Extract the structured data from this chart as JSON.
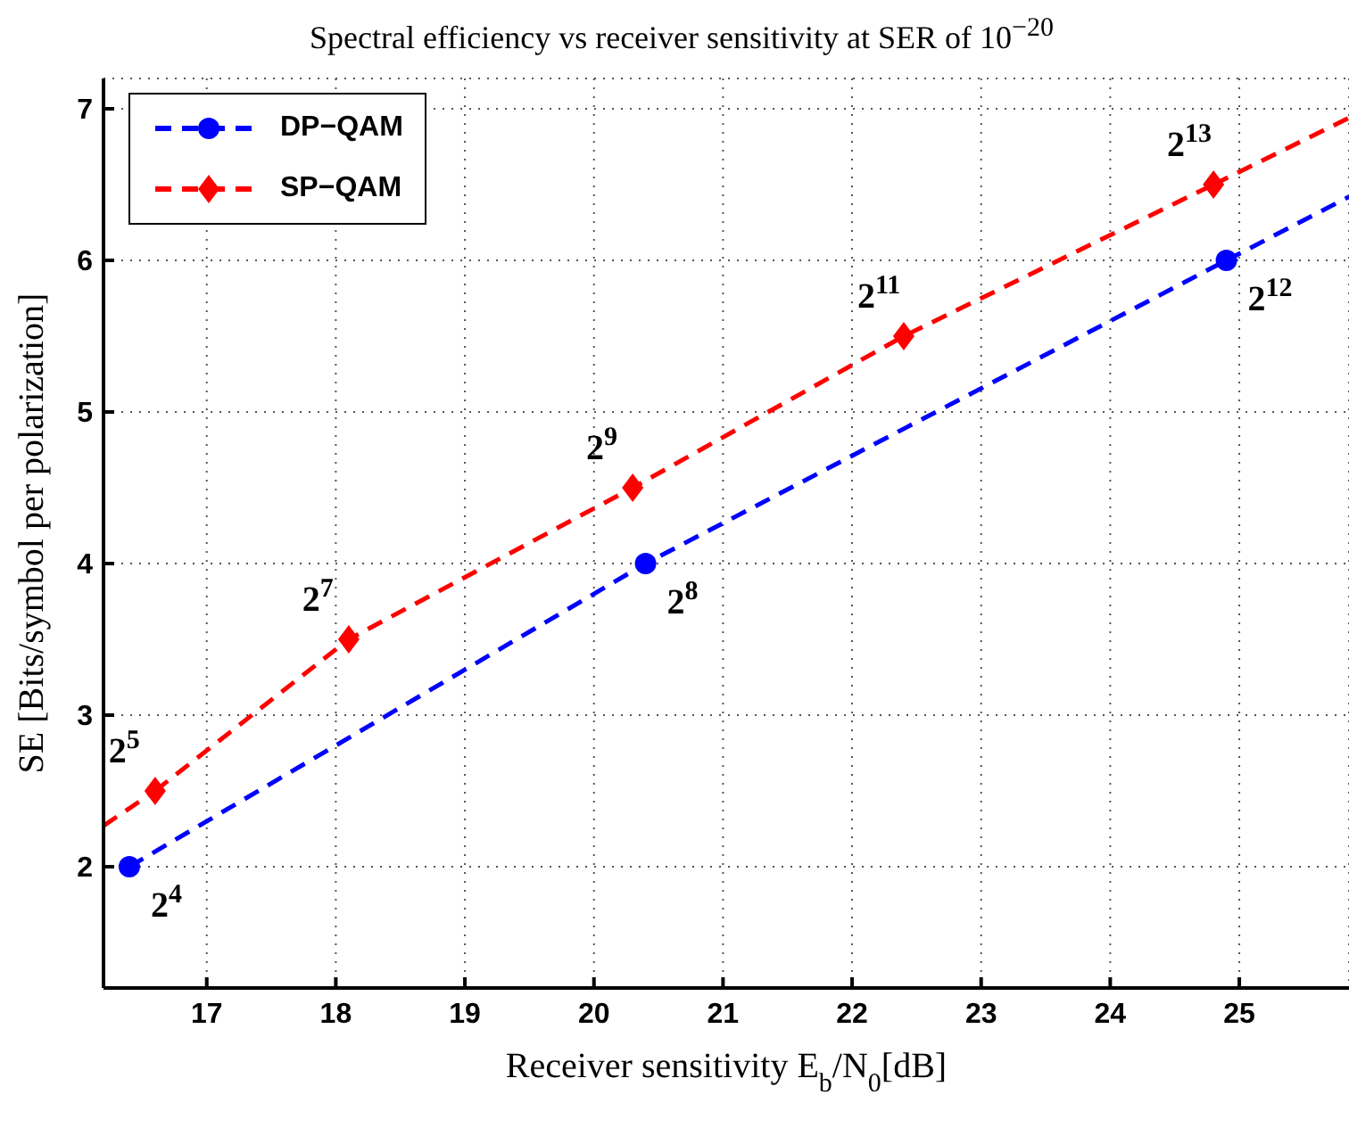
{
  "chart_data": {
    "type": "line",
    "title": "Spectral efficiency vs receiver sensitivity at SER of 10$^{−20}$",
    "xlabel": "Receiver sensitivity E$_{b}$/N$_{0}$[dB]",
    "ylabel": "SE [Bits/symbol per polarization]",
    "xlim": [
      16.2,
      25.85
    ],
    "xticks": [
      17,
      18,
      19,
      20,
      21,
      22,
      23,
      24,
      25
    ],
    "ylim": [
      1.2,
      7.2
    ],
    "yticks": [
      2,
      3,
      4,
      5,
      6,
      7
    ],
    "grid": true,
    "legend": "top left",
    "series": [
      {
        "name": "DP−QAM",
        "color": "#0000ff",
        "marker": "circle",
        "line_style": "dashed",
        "x": [
          16.4,
          20.4,
          24.9
        ],
        "values": [
          2,
          4,
          6
        ]
      },
      {
        "name": "SP−QAM",
        "color": "#ff0000",
        "marker": "diamond",
        "line_style": "dashed",
        "x": [
          16.6,
          18.1,
          20.3,
          22.4,
          24.8
        ],
        "values": [
          2.5,
          3.5,
          4.5,
          5.5,
          6.5
        ]
      },
      {
        "color": "#0000ff",
        "marker": "none",
        "line_style": "dashed",
        "x": [
          24.9,
          25.85
        ],
        "values": [
          6,
          6.42
        ]
      },
      {
        "color": "#ff0000",
        "marker": "none",
        "line_style": "dashed",
        "x": [
          16.2,
          16.6
        ],
        "values": [
          2.27,
          2.5
        ]
      },
      {
        "color": "#ff0000",
        "marker": "none",
        "line_style": "dashed",
        "x": [
          24.8,
          25.85
        ],
        "values": [
          6.5,
          6.94
        ]
      }
    ],
    "annotations": [
      {
        "text": "2$^{4}$",
        "x": 16.4,
        "y": 2
      },
      {
        "text": "2$^{5}$",
        "x": 16.6,
        "y": 2.5
      },
      {
        "text": "2$^{7}$",
        "x": 18.1,
        "y": 3.5
      },
      {
        "text": "2$^{8}$",
        "x": 20.4,
        "y": 4
      },
      {
        "text": "2$^{9}$",
        "x": 20.3,
        "y": 4.5
      },
      {
        "text": "2$^{11}$",
        "x": 22.4,
        "y": 5.5
      },
      {
        "text": "2$^{12}$",
        "x": 24.9,
        "y": 6
      },
      {
        "text": "2$^{13}$",
        "x": 24.8,
        "y": 6.5
      }
    ]
  }
}
